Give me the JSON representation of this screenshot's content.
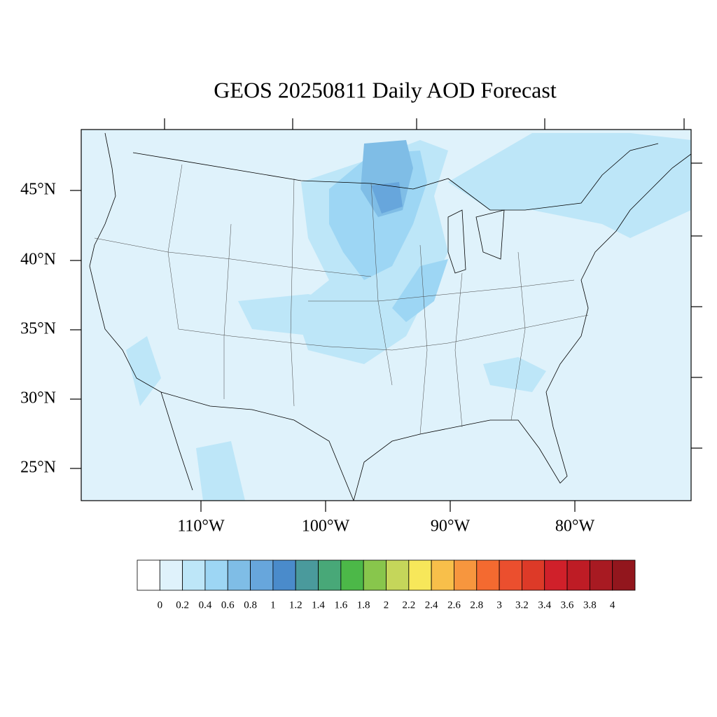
{
  "map": {
    "title": "GEOS 20250811 Daily AOD Forecast",
    "lat_labels": [
      "45°N",
      "40°N",
      "35°N",
      "30°N",
      "25°N"
    ],
    "lon_labels": [
      "110°W",
      "100°W",
      "90°W",
      "80°W"
    ],
    "colorbar": {
      "levels": [
        0,
        0.2,
        0.4,
        0.6,
        0.8,
        1,
        1.2,
        1.4,
        1.6,
        1.8,
        2,
        2.2,
        2.4,
        2.6,
        2.8,
        3,
        3.2,
        3.4,
        3.6,
        3.8,
        4
      ],
      "colors": [
        "#ffffff",
        "#dff2fb",
        "#bde6f8",
        "#9dd6f4",
        "#7fbde6",
        "#67a6dc",
        "#4a8bcb",
        "#4a9a9c",
        "#48a878",
        "#4cb848",
        "#88c64c",
        "#c5d65a",
        "#f7e75a",
        "#f8bf4a",
        "#f7963e",
        "#f46a30",
        "#eb4f2e",
        "#dd3a28",
        "#d0202a",
        "#be1c25",
        "#a81a22",
        "#92161d"
      ]
    }
  }
}
